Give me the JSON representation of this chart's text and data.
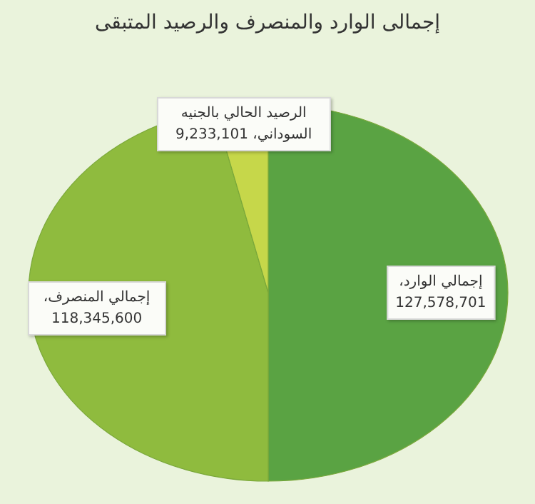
{
  "chart_data": {
    "type": "pie",
    "title": "إجمالى الوارد والمنصرف والرصيد المتبقى",
    "categories": [
      "إجمالي الوارد،",
      "إجمالي المنصرف،",
      "الرصيد الحالي بالجنيه السوداني،"
    ],
    "values": [
      127578701,
      118345600,
      9233101
    ],
    "value_labels": [
      "127,578,701",
      "118,345,600",
      "9,233,101"
    ],
    "colors": [
      "#5aa343",
      "#8fbb3e",
      "#c6d74a"
    ]
  }
}
